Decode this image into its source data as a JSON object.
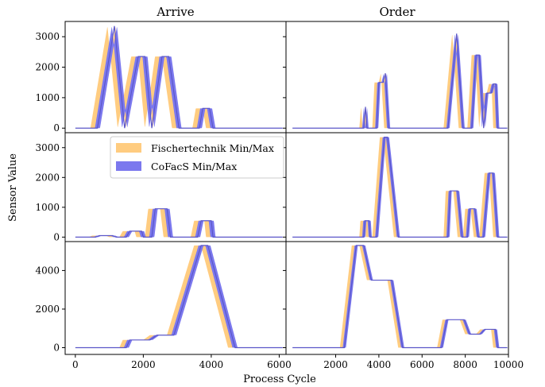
{
  "chart_data": {
    "type": "area",
    "ylabel": "Sensor Value",
    "xlabel": "Process Cycle",
    "columns": [
      "Arrive",
      "Order"
    ],
    "legend": {
      "placement": "upper-right of middle-left panel",
      "entries": [
        {
          "name": "Fischertechnik Min/Max",
          "color": "#ffcc80"
        },
        {
          "name": "CoFacS Min/Max",
          "color": "#7b78ee"
        }
      ]
    },
    "line_color": "#5b57c9",
    "x_ticks": {
      "Arrive": [
        "0",
        "2000",
        "4000",
        "6000"
      ],
      "Order": [
        "2000",
        "4000",
        "6000",
        "8000",
        "10000"
      ]
    },
    "panels": [
      {
        "id": "arrive-top",
        "col": 0,
        "row": 0,
        "xlim": [
          -300,
          6200
        ],
        "ylim": [
          -150,
          3500
        ],
        "yticks": [
          0,
          1000,
          2000,
          3000
        ],
        "ytick_labels": [
          "0",
          "1000",
          "2000",
          "3000"
        ],
        "line": [
          [
            0,
            0
          ],
          [
            650,
            0
          ],
          [
            1150,
            3350
          ],
          [
            1450,
            0
          ],
          [
            1850,
            2350
          ],
          [
            2050,
            2350
          ],
          [
            2250,
            0
          ],
          [
            2550,
            2350
          ],
          [
            2750,
            2350
          ],
          [
            3050,
            0
          ],
          [
            3650,
            0
          ],
          [
            3750,
            650
          ],
          [
            3950,
            650
          ],
          [
            4050,
            0
          ],
          [
            6100,
            0
          ]
        ],
        "fischer_offset": -90,
        "fischer_spread": 230,
        "cofacs_spread": 150
      },
      {
        "id": "order-top",
        "col": 1,
        "row": 0,
        "xlim": [
          -300,
          10000
        ],
        "ylim": [
          -150,
          3500
        ],
        "yticks": [
          0,
          1000,
          2000,
          3000
        ],
        "ytick_labels": [],
        "line": [
          [
            0,
            0
          ],
          [
            3300,
            0
          ],
          [
            3380,
            700
          ],
          [
            3450,
            0
          ],
          [
            3900,
            0
          ],
          [
            4000,
            1500
          ],
          [
            4200,
            1500
          ],
          [
            4300,
            1800
          ],
          [
            4450,
            0
          ],
          [
            7200,
            0
          ],
          [
            7600,
            3100
          ],
          [
            7900,
            0
          ],
          [
            8300,
            0
          ],
          [
            8500,
            2400
          ],
          [
            8650,
            2400
          ],
          [
            8850,
            0
          ],
          [
            9000,
            1150
          ],
          [
            9200,
            1150
          ],
          [
            9300,
            1450
          ],
          [
            9420,
            1450
          ],
          [
            9500,
            0
          ],
          [
            9950,
            0
          ]
        ],
        "fischer_offset": -90,
        "fischer_spread": 230,
        "cofacs_spread": 150
      },
      {
        "id": "arrive-mid",
        "col": 0,
        "row": 1,
        "xlim": [
          -300,
          6200
        ],
        "ylim": [
          -150,
          3500
        ],
        "yticks": [
          0,
          1000,
          2000,
          3000
        ],
        "ytick_labels": [
          "0",
          "1000",
          "2000",
          "3000"
        ],
        "line": [
          [
            0,
            0
          ],
          [
            600,
            0
          ],
          [
            700,
            50
          ],
          [
            1100,
            50
          ],
          [
            1200,
            0
          ],
          [
            1500,
            0
          ],
          [
            1600,
            200
          ],
          [
            1950,
            200
          ],
          [
            2000,
            0
          ],
          [
            2250,
            0
          ],
          [
            2350,
            950
          ],
          [
            2700,
            950
          ],
          [
            2800,
            0
          ],
          [
            3600,
            0
          ],
          [
            3700,
            550
          ],
          [
            4000,
            550
          ],
          [
            4050,
            0
          ],
          [
            6100,
            0
          ]
        ],
        "fischer_offset": -90,
        "fischer_spread": 230,
        "cofacs_spread": 150
      },
      {
        "id": "order-mid",
        "col": 1,
        "row": 1,
        "xlim": [
          -300,
          10000
        ],
        "ylim": [
          -150,
          3500
        ],
        "yticks": [
          0,
          1000,
          2000,
          3000
        ],
        "ytick_labels": [],
        "line": [
          [
            0,
            0
          ],
          [
            3300,
            0
          ],
          [
            3350,
            550
          ],
          [
            3550,
            550
          ],
          [
            3600,
            0
          ],
          [
            3900,
            0
          ],
          [
            4250,
            3350
          ],
          [
            4400,
            3350
          ],
          [
            4900,
            0
          ],
          [
            7200,
            0
          ],
          [
            7300,
            1550
          ],
          [
            7650,
            1550
          ],
          [
            7850,
            0
          ],
          [
            8100,
            0
          ],
          [
            8200,
            950
          ],
          [
            8450,
            950
          ],
          [
            8600,
            0
          ],
          [
            8850,
            0
          ],
          [
            9100,
            2150
          ],
          [
            9300,
            2150
          ],
          [
            9500,
            0
          ],
          [
            9950,
            0
          ]
        ],
        "fischer_offset": -90,
        "fischer_spread": 230,
        "cofacs_spread": 150
      },
      {
        "id": "arrive-bottom",
        "col": 0,
        "row": 2,
        "xlim": [
          -300,
          6200
        ],
        "ylim": [
          -350,
          5500
        ],
        "yticks": [
          0,
          2000,
          4000
        ],
        "ytick_labels": [
          "0",
          "2000",
          "4000"
        ],
        "line": [
          [
            0,
            0
          ],
          [
            1500,
            0
          ],
          [
            1600,
            400
          ],
          [
            2200,
            400
          ],
          [
            2400,
            650
          ],
          [
            2900,
            650
          ],
          [
            3700,
            5300
          ],
          [
            3900,
            5300
          ],
          [
            4700,
            0
          ],
          [
            6100,
            0
          ]
        ],
        "fischer_offset": -90,
        "fischer_spread": 230,
        "cofacs_spread": 150
      },
      {
        "id": "order-bottom",
        "col": 1,
        "row": 2,
        "xlim": [
          -300,
          10000
        ],
        "ylim": [
          -350,
          5500
        ],
        "yticks": [
          0,
          2000,
          4000
        ],
        "ytick_labels": [],
        "line": [
          [
            0,
            0
          ],
          [
            2400,
            0
          ],
          [
            2950,
            5300
          ],
          [
            3300,
            5300
          ],
          [
            3650,
            3500
          ],
          [
            4600,
            3500
          ],
          [
            5100,
            0
          ],
          [
            6900,
            0
          ],
          [
            7150,
            1450
          ],
          [
            7950,
            1450
          ],
          [
            8200,
            700
          ],
          [
            8700,
            700
          ],
          [
            8900,
            950
          ],
          [
            9400,
            950
          ],
          [
            9500,
            0
          ],
          [
            9950,
            0
          ]
        ],
        "fischer_offset": -90,
        "fischer_spread": 230,
        "cofacs_spread": 150
      }
    ]
  }
}
